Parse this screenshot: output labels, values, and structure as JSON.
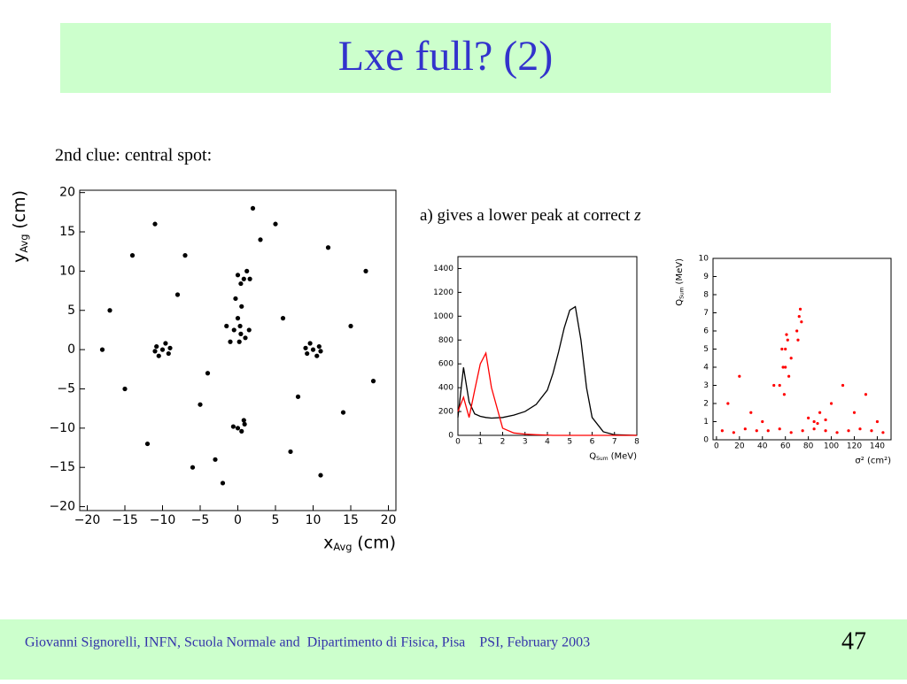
{
  "header": {
    "title": "Lxe full? (2)"
  },
  "body": {
    "clue": "2nd clue: central spot:",
    "note": "a) gives a lower peak at correct ",
    "note_var": "z"
  },
  "footer": {
    "text": "Giovanni Signorelli, INFN, Scuola Normale and  Dipartimento di Fisica, Pisa    PSI, February 2003",
    "page": "47"
  },
  "chart_data": [
    {
      "type": "scatter",
      "color": "#000000",
      "xlabel": {
        "main": "x",
        "sub": "Avg",
        "unit": "(cm)"
      },
      "ylabel": {
        "main": "y",
        "sub": "Avg",
        "unit": "(cm)"
      },
      "xlim": [
        -21,
        21
      ],
      "ylim": [
        -20.5,
        20.3
      ],
      "xticks": [
        {
          "value": -20,
          "label": "−20"
        },
        {
          "value": -15,
          "label": "−15"
        },
        {
          "value": -10,
          "label": "−10"
        },
        {
          "value": -5,
          "label": "−5"
        },
        0,
        5,
        10,
        15,
        20
      ],
      "yticks": [
        {
          "value": -20,
          "label": "−20"
        },
        {
          "value": -15,
          "label": "−15"
        },
        {
          "value": -10,
          "label": "−10"
        },
        {
          "value": -5,
          "label": "−5"
        },
        0,
        5,
        10,
        15,
        20
      ],
      "x": [
        -10,
        -10.8,
        -9.2,
        -10.5,
        -9.6,
        -11,
        -9,
        10,
        10.8,
        9.2,
        10.5,
        9.6,
        9,
        11,
        0.8,
        0,
        1.6,
        0.4,
        1.2,
        0.9,
        0,
        0.8,
        -0.6,
        0.5,
        0.4,
        -0.5,
        0.3,
        0,
        1,
        -1,
        0.5,
        -0.3,
        1.5,
        -1.5,
        0.2,
        -14,
        -6,
        5,
        14,
        -17,
        17,
        -3,
        3,
        -8,
        8,
        -12,
        12,
        -4,
        6,
        -15,
        15,
        -2,
        2,
        -7,
        7,
        -18,
        18,
        -11,
        11,
        -5
      ],
      "values": [
        0,
        0.4,
        -0.5,
        -0.8,
        0.8,
        -0.2,
        0.2,
        0,
        0.4,
        -0.5,
        -0.8,
        0.8,
        0.2,
        -0.2,
        9,
        9.5,
        9,
        8.4,
        10,
        -9.5,
        -10,
        -9,
        -9.8,
        -10.4,
        2,
        2.5,
        3,
        4,
        1.5,
        1,
        5.5,
        6.5,
        2.5,
        3,
        1,
        12,
        -15,
        16,
        -8,
        5,
        10,
        -14,
        14,
        7,
        -6,
        -12,
        13,
        -3,
        4,
        -5,
        3,
        -17,
        18,
        12,
        -13,
        0,
        -4,
        16,
        -16,
        -7
      ]
    },
    {
      "type": "line",
      "xlabel": {
        "main": "Q",
        "sub": "Sum",
        "unit": "(MeV)"
      },
      "xlim": [
        0,
        8
      ],
      "ylim": [
        0,
        1500
      ],
      "xticks": [
        0,
        1,
        2,
        3,
        4,
        5,
        6,
        7,
        8
      ],
      "yticks": [
        0,
        200,
        400,
        600,
        800,
        1000,
        1200,
        1400
      ],
      "x": [
        0,
        0.25,
        0.5,
        0.75,
        1,
        1.25,
        1.5,
        2,
        2.5,
        3,
        3.5,
        4,
        4.25,
        4.5,
        4.75,
        5,
        5.25,
        5.5,
        5.75,
        6,
        6.5,
        7,
        8
      ],
      "series": [
        {
          "color": "#000000",
          "values": [
            150,
            570,
            280,
            180,
            160,
            150,
            145,
            150,
            170,
            200,
            260,
            380,
            520,
            700,
            900,
            1050,
            1080,
            800,
            400,
            150,
            30,
            5,
            0
          ]
        },
        {
          "color": "#ff0000",
          "values": [
            200,
            320,
            150,
            380,
            600,
            690,
            400,
            60,
            20,
            10,
            5,
            2,
            0,
            0,
            0,
            0,
            0,
            0,
            0,
            0,
            0,
            0,
            0
          ]
        }
      ]
    },
    {
      "type": "scatter",
      "color": "#ff0000",
      "xlabel": {
        "main": "σ² (cm²)"
      },
      "ylabel": {
        "main": "Q",
        "sub": "Sum",
        "unit": "(MeV)"
      },
      "xlim": [
        -3,
        152
      ],
      "ylim": [
        0,
        10
      ],
      "xticks": [
        0,
        20,
        40,
        60,
        80,
        100,
        120,
        140
      ],
      "yticks": [
        0,
        1,
        2,
        3,
        4,
        5,
        6,
        7,
        8,
        9,
        10
      ],
      "x": [
        55,
        58,
        60,
        62,
        65,
        57,
        63,
        60,
        59,
        61,
        70,
        72,
        74,
        71,
        73,
        5,
        15,
        25,
        35,
        45,
        55,
        65,
        75,
        85,
        95,
        105,
        115,
        125,
        135,
        145,
        80,
        85,
        90,
        88,
        95,
        10,
        30,
        50,
        100,
        120,
        140,
        20,
        110,
        40,
        130
      ],
      "values": [
        3,
        4,
        5,
        5.5,
        4.5,
        5,
        3.5,
        4,
        2.5,
        5.8,
        6,
        6.8,
        6.5,
        5.5,
        7.2,
        0.5,
        0.4,
        0.6,
        0.5,
        0.5,
        0.6,
        0.4,
        0.5,
        0.6,
        0.5,
        0.4,
        0.5,
        0.6,
        0.5,
        0.4,
        1.2,
        1,
        1.5,
        0.9,
        1.1,
        2,
        1.5,
        3,
        2,
        1.5,
        1,
        3.5,
        3,
        1,
        2.5
      ]
    }
  ]
}
